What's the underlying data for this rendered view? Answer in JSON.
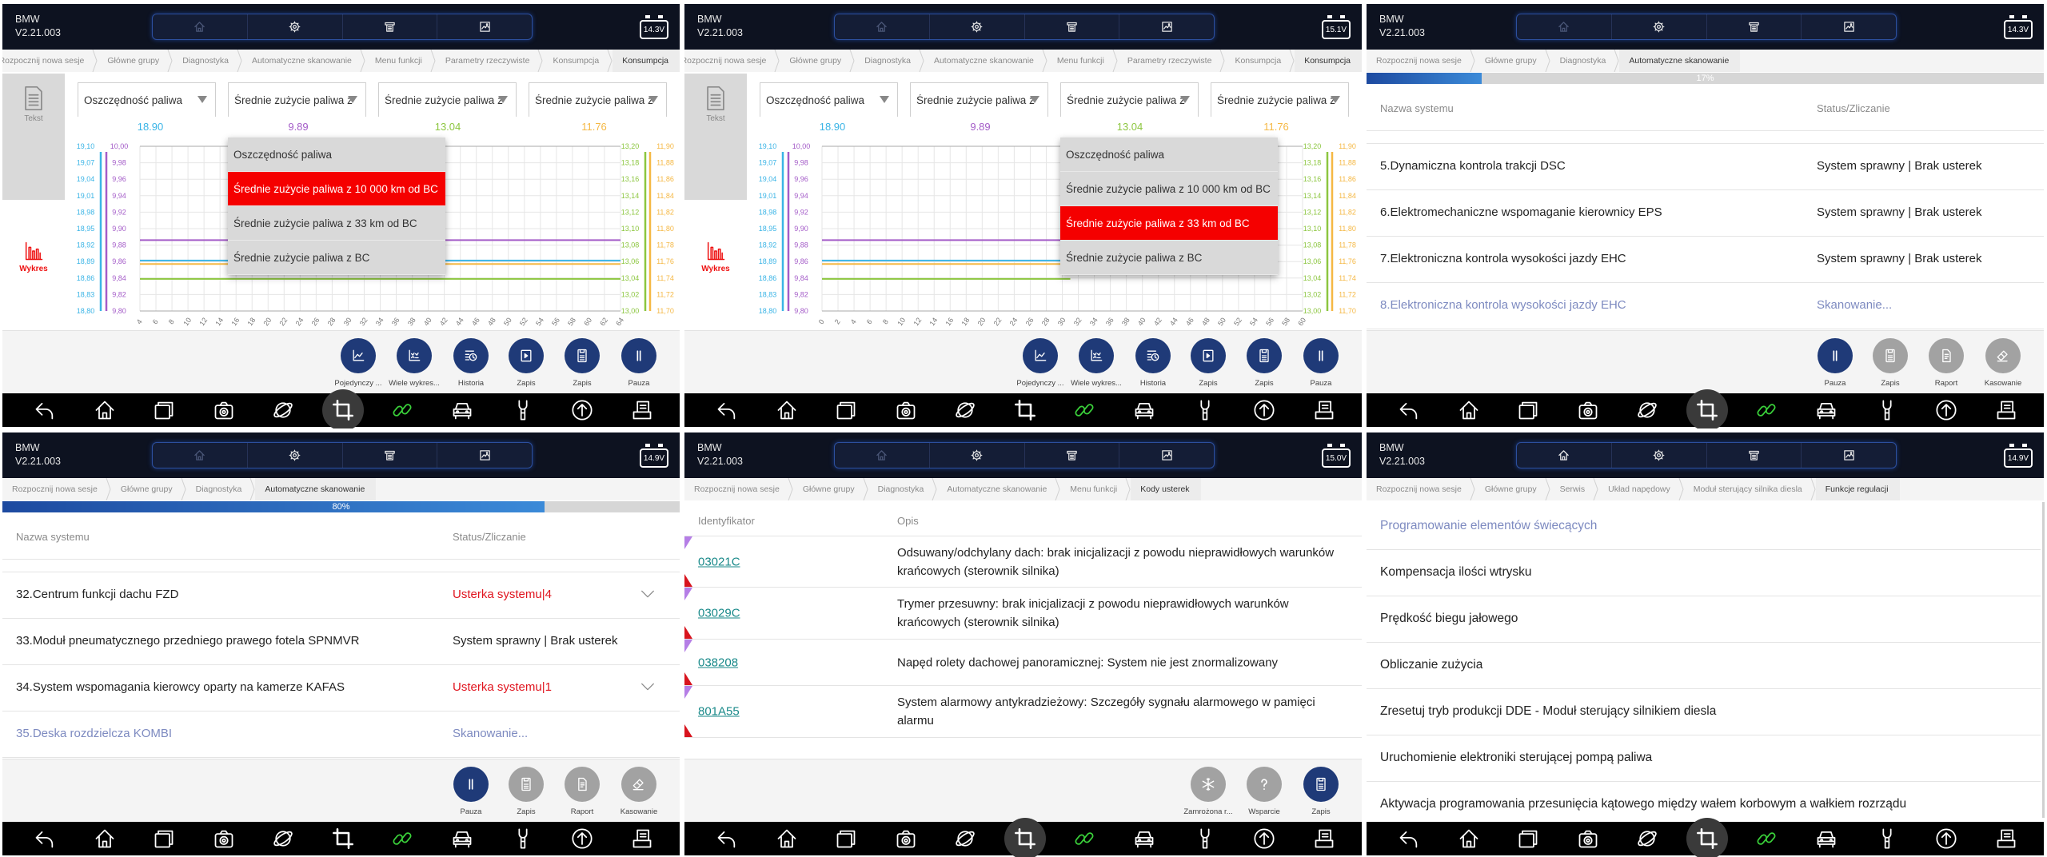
{
  "app": {
    "brand": "BMW",
    "version": "V2.21.003"
  },
  "header_icons": [
    "home-icon",
    "gear-icon",
    "printer-icon",
    "image-icon"
  ],
  "nav_icons": [
    "back-icon",
    "home-icon",
    "windows-icon",
    "camera-icon",
    "browser-icon",
    "crop-icon",
    "link-icon",
    "car-icon",
    "wrench-icon",
    "upload-icon",
    "document-icon"
  ],
  "colors": {
    "header": "#0d1220",
    "primary_button": "#1f3a78",
    "disabled_button": "#a2a2a2",
    "error": "#e0141e",
    "scanning": "#7d8ac0",
    "selected_menu": "#f50000",
    "link": "#1a8a8a",
    "nav_link_icon": "#3ad13a"
  },
  "panels": [
    {
      "type": "chart",
      "voltage": "14.3V",
      "home_active": false,
      "crop_active": true,
      "crumbs_overflow": true,
      "breadcrumb": [
        "Rozpocznij nowa sesje",
        "Główne grupy",
        "Diagnostyka",
        "Automatyczne skanowanie",
        "Menu funkcji",
        "Parametry rzeczywiste",
        "Konsumpcja",
        "Konsumpcja"
      ],
      "sidebar": {
        "text_label": "Tekst",
        "chart_label": "Wykres"
      },
      "dropdowns": [
        "Oszczędność paliwa",
        "Średnie zużycie paliwa z 10 000 km od BC",
        "Średnie zużycie paliwa z 33 km od BC",
        "Średnie zużycie paliwa z BC"
      ],
      "menu": {
        "over_dropdown": 1,
        "selected": 1,
        "items": [
          "Oszczędność paliwa",
          "Średnie zużycie paliwa z 10 000 km od BC",
          "Średnie zużycie paliwa z 33 km od BC",
          "Średnie zużycie paliwa z BC"
        ]
      },
      "current_values": [
        "18.90",
        "9.89",
        "13.04",
        "11.76"
      ],
      "chart": 0,
      "buttons": [
        {
          "label": "Pojedynczy ...",
          "icon": "line-chart-icon",
          "style": "primary"
        },
        {
          "label": "Wiele wykres...",
          "icon": "multi-chart-icon",
          "style": "primary"
        },
        {
          "label": "Historia",
          "icon": "history-icon",
          "style": "primary"
        },
        {
          "label": "Zapis",
          "icon": "record-icon",
          "style": "primary"
        },
        {
          "label": "Zapis",
          "icon": "save-icon",
          "style": "primary"
        },
        {
          "label": "Pauza",
          "icon": "pause-icon",
          "style": "primary"
        }
      ]
    },
    {
      "type": "chart",
      "voltage": "15.1V",
      "home_active": false,
      "crop_active": false,
      "crumbs_overflow": true,
      "breadcrumb": [
        "Rozpocznij nowa sesje",
        "Główne grupy",
        "Diagnostyka",
        "Automatyczne skanowanie",
        "Menu funkcji",
        "Parametry rzeczywiste",
        "Konsumpcja",
        "Konsumpcja"
      ],
      "sidebar": {
        "text_label": "Tekst",
        "chart_label": "Wykres"
      },
      "dropdowns": [
        "Oszczędność paliwa",
        "Średnie zużycie paliwa z 10 000 km od BC",
        "Średnie zużycie paliwa z 33 km od BC",
        "Średnie zużycie paliwa z BC"
      ],
      "menu": {
        "over_dropdown": 2,
        "selected": 2,
        "items": [
          "Oszczędność paliwa",
          "Średnie zużycie paliwa z 10 000 km od BC",
          "Średnie zużycie paliwa z 33 km od BC",
          "Średnie zużycie paliwa z BC"
        ]
      },
      "current_values": [
        "18.90",
        "9.89",
        "13.04",
        "11.76"
      ],
      "chart": 1,
      "buttons": [
        {
          "label": "Pojedynczy ...",
          "icon": "line-chart-icon",
          "style": "primary"
        },
        {
          "label": "Wiele wykres...",
          "icon": "multi-chart-icon",
          "style": "primary"
        },
        {
          "label": "Historia",
          "icon": "history-icon",
          "style": "primary"
        },
        {
          "label": "Zapis",
          "icon": "record-icon",
          "style": "primary"
        },
        {
          "label": "Zapis",
          "icon": "save-icon",
          "style": "primary"
        },
        {
          "label": "Pauza",
          "icon": "pause-icon",
          "style": "primary"
        }
      ]
    },
    {
      "type": "scan",
      "voltage": "14.3V",
      "home_active": false,
      "crop_active": true,
      "breadcrumb": [
        "Rozpocznij nowa sesje",
        "Główne grupy",
        "Diagnostyka",
        "Automatyczne skanowanie"
      ],
      "progress": {
        "percent": 17,
        "label": "17%"
      },
      "columns": [
        "Nazwa systemu",
        "Status/Zliczanie"
      ],
      "rows": [
        {
          "name": "5.Dynamiczna kontrola trakcji DSC",
          "status": "System sprawny | Brak usterek",
          "state": "ok"
        },
        {
          "name": "6.Elektromechaniczne wspomaganie kierownicy EPS",
          "status": "System sprawny | Brak usterek",
          "state": "ok"
        },
        {
          "name": "7.Elektroniczna kontrola wysokości jazdy EHC",
          "status": "System sprawny | Brak usterek",
          "state": "ok"
        },
        {
          "name": "8.Elektroniczna kontrola wysokości jazdy EHC",
          "status": "Skanowanie...",
          "state": "scanning"
        }
      ],
      "buttons": [
        {
          "label": "Pauza",
          "icon": "pause-icon",
          "style": "primary"
        },
        {
          "label": "Zapis",
          "icon": "save-icon",
          "style": "disabled"
        },
        {
          "label": "Raport",
          "icon": "report-icon",
          "style": "disabled"
        },
        {
          "label": "Kasowanie",
          "icon": "eraser-icon",
          "style": "disabled"
        }
      ]
    },
    {
      "type": "scan",
      "voltage": "14.9V",
      "home_active": false,
      "crop_active": false,
      "breadcrumb": [
        "Rozpocznij nowa sesje",
        "Główne grupy",
        "Diagnostyka",
        "Automatyczne skanowanie"
      ],
      "progress": {
        "percent": 80,
        "label": "80%"
      },
      "columns": [
        "Nazwa systemu",
        "Status/Zliczanie"
      ],
      "rows": [
        {
          "name": "32.Centrum funkcji dachu FZD",
          "status": "Usterka systemu|4",
          "state": "error"
        },
        {
          "name": "33.Moduł pneumatycznego przedniego prawego fotela SPNMVR",
          "status": "System sprawny | Brak usterek",
          "state": "ok"
        },
        {
          "name": "34.System wspomagania kierowcy oparty na kamerze KAFAS",
          "status": "Usterka systemu|1",
          "state": "error"
        },
        {
          "name": "35.Deska rozdzielcza KOMBI",
          "status": "Skanowanie...",
          "state": "scanning"
        }
      ],
      "buttons": [
        {
          "label": "Pauza",
          "icon": "pause-icon",
          "style": "primary"
        },
        {
          "label": "Zapis",
          "icon": "save-icon",
          "style": "disabled"
        },
        {
          "label": "Raport",
          "icon": "report-icon",
          "style": "disabled"
        },
        {
          "label": "Kasowanie",
          "icon": "eraser-icon",
          "style": "disabled"
        }
      ]
    },
    {
      "type": "codes",
      "voltage": "15.0V",
      "home_active": false,
      "crop_active": true,
      "breadcrumb": [
        "Rozpocznij nowa sesje",
        "Główne grupy",
        "Diagnostyka",
        "Automatyczne skanowanie",
        "Menu funkcji",
        "Kody usterek"
      ],
      "columns": [
        "Identyfikator",
        "Opis"
      ],
      "rows": [
        {
          "id": "03021C",
          "desc": "Odsuwany/odchylany dach: brak inicjalizacji z powodu nieprawidłowych warunków krańcowych (sterownik silnika)"
        },
        {
          "id": "03029C",
          "desc": "Trymer przesuwny: brak inicjalizacji z powodu nieprawidłowych warunków krańcowych (sterownik silnika)"
        },
        {
          "id": "038208",
          "desc": "Napęd rolety dachowej panoramicznej: System nie jest znormalizowany"
        },
        {
          "id": "801A55",
          "desc": "System alarmowy antykradzieżowy: Szczegóły sygnału alarmowego w pamięci alarmu"
        }
      ],
      "buttons": [
        {
          "label": "Zamrożona r...",
          "icon": "snowflake-icon",
          "style": "disabled"
        },
        {
          "label": "Wsparcie",
          "icon": "question-icon",
          "style": "disabled"
        },
        {
          "label": "Zapis",
          "icon": "save-icon",
          "style": "primary"
        }
      ]
    },
    {
      "type": "list",
      "voltage": "14.9V",
      "home_active": true,
      "crop_active": true,
      "breadcrumb": [
        "Rozpocznij nowa sesje",
        "Główne grupy",
        "Serwis",
        "Układ napędowy",
        "Moduł sterujący silnika diesla",
        "Funkcje regulacji"
      ],
      "items": [
        "Programowanie elementów świecących",
        "Kompensacja ilości wtrysku",
        "Prędkość biegu jałowego",
        "Obliczanie zużycia",
        "Zresetuj tryb produkcji DDE - Moduł sterujący silnikiem diesla",
        "Uruchomienie elektroniki sterującej pompą paliwa",
        "Aktywacja programowania przesunięcia kątowego między wałem korbowym a wałkiem rozrządu"
      ],
      "highlighted": 0
    }
  ],
  "chart_data": [
    {
      "type": "line",
      "grid": true,
      "x_ticks": [
        4,
        6,
        8,
        10,
        12,
        14,
        16,
        18,
        20,
        22,
        24,
        26,
        28,
        30,
        32,
        34,
        36,
        38,
        40,
        42,
        44,
        46,
        48,
        50,
        52,
        54,
        56,
        58,
        60,
        62,
        64
      ],
      "xlim": [
        4,
        64
      ],
      "axes": [
        {
          "color": "#3ab4e6",
          "side": "left",
          "ylim": [
            18.8,
            19.1
          ],
          "ticks": [
            "19,10",
            "19,07",
            "19,04",
            "19,01",
            "18,98",
            "18,95",
            "18,92",
            "18,89",
            "18,86",
            "18,83",
            "18,80"
          ]
        },
        {
          "color": "#a45cc8",
          "side": "left",
          "ylim": [
            9.8,
            10.0
          ],
          "ticks": [
            "10,00",
            "9,98",
            "9,96",
            "9,94",
            "9,92",
            "9,90",
            "9,88",
            "9,86",
            "9,84",
            "9,82",
            "9,80"
          ]
        },
        {
          "color": "#8cc63f",
          "side": "right",
          "ylim": [
            13.0,
            13.2
          ],
          "ticks": [
            "13,20",
            "13,18",
            "13,16",
            "13,14",
            "13,12",
            "13,10",
            "13,08",
            "13,06",
            "13,04",
            "13,02",
            "13,00"
          ]
        },
        {
          "color": "#f5b844",
          "side": "right",
          "ylim": [
            11.7,
            11.9
          ],
          "ticks": [
            "11,90",
            "11,88",
            "11,86",
            "11,84",
            "11,82",
            "11,80",
            "11,78",
            "11,76",
            "11,74",
            "11,72",
            "11,70"
          ]
        }
      ],
      "series": [
        {
          "axis": 0,
          "x": [
            4,
            64
          ],
          "y": [
            18.892,
            18.892
          ]
        },
        {
          "axis": 1,
          "x": [
            4,
            64
          ],
          "y": [
            9.886,
            9.886
          ]
        },
        {
          "axis": 2,
          "x": [
            4,
            64
          ],
          "y": [
            13.039,
            13.039
          ]
        },
        {
          "axis": 3,
          "x": [
            4,
            64
          ],
          "y": [
            11.757,
            11.757
          ]
        }
      ]
    },
    {
      "type": "line",
      "grid": true,
      "x_ticks": [
        0,
        2,
        4,
        6,
        8,
        10,
        12,
        14,
        16,
        18,
        20,
        22,
        24,
        26,
        28,
        30,
        32,
        34,
        36,
        38,
        40,
        42,
        44,
        46,
        48,
        50,
        52,
        54,
        56,
        58,
        60
      ],
      "xlim": [
        0,
        60
      ],
      "axes": [
        {
          "color": "#3ab4e6",
          "side": "left",
          "ylim": [
            18.8,
            19.1
          ],
          "ticks": [
            "19,10",
            "19,07",
            "19,04",
            "19,01",
            "18,98",
            "18,95",
            "18,92",
            "18,89",
            "18,86",
            "18,83",
            "18,80"
          ]
        },
        {
          "color": "#a45cc8",
          "side": "left",
          "ylim": [
            9.8,
            10.0
          ],
          "ticks": [
            "10,00",
            "9,98",
            "9,96",
            "9,94",
            "9,92",
            "9,90",
            "9,88",
            "9,86",
            "9,84",
            "9,82",
            "9,80"
          ]
        },
        {
          "color": "#8cc63f",
          "side": "right",
          "ylim": [
            13.0,
            13.2
          ],
          "ticks": [
            "13,20",
            "13,18",
            "13,16",
            "13,14",
            "13,12",
            "13,10",
            "13,08",
            "13,06",
            "13,04",
            "13,02",
            "13,00"
          ]
        },
        {
          "color": "#f5b844",
          "side": "right",
          "ylim": [
            11.7,
            11.9
          ],
          "ticks": [
            "11,90",
            "11,88",
            "11,86",
            "11,84",
            "11,82",
            "11,80",
            "11,78",
            "11,76",
            "11,74",
            "11,72",
            "11,70"
          ]
        }
      ],
      "series": [
        {
          "axis": 0,
          "x": [
            0,
            32
          ],
          "y": [
            18.892,
            18.892
          ]
        },
        {
          "axis": 1,
          "x": [
            0,
            31
          ],
          "y": [
            9.886,
            9.886
          ]
        },
        {
          "axis": 2,
          "x": [
            0,
            31
          ],
          "y": [
            13.039,
            13.039
          ]
        },
        {
          "axis": 3,
          "x": [
            0,
            31
          ],
          "y": [
            11.757,
            11.757
          ]
        }
      ]
    }
  ]
}
